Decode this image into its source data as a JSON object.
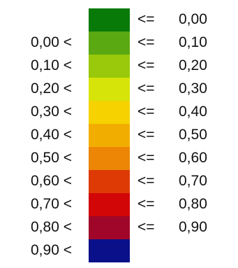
{
  "legend": {
    "rows": [
      {
        "lower": "",
        "color": "#087a08",
        "op": "<=",
        "upper": "0,00"
      },
      {
        "lower": "0,00 <",
        "color": "#5aa812",
        "op": "<=",
        "upper": "0,10"
      },
      {
        "lower": "0,10 <",
        "color": "#99c90a",
        "op": "<=",
        "upper": "0,20"
      },
      {
        "lower": "0,20 <",
        "color": "#d6e40a",
        "op": "<=",
        "upper": "0,30"
      },
      {
        "lower": "0,30 <",
        "color": "#f5d200",
        "op": "<=",
        "upper": "0,40"
      },
      {
        "lower": "0,40 <",
        "color": "#f2ae00",
        "op": "<=",
        "upper": "0,50"
      },
      {
        "lower": "0,50 <",
        "color": "#ec8604",
        "op": "<=",
        "upper": "0,60"
      },
      {
        "lower": "0,60 <",
        "color": "#de3a06",
        "op": "<=",
        "upper": "0,70"
      },
      {
        "lower": "0,70 <",
        "color": "#d20606",
        "op": "<=",
        "upper": "0,80"
      },
      {
        "lower": "0,80 <",
        "color": "#a00629",
        "op": "<=",
        "upper": "0,90"
      },
      {
        "lower": "0,90 <",
        "color": "#0a1089",
        "op": "",
        "upper": ""
      }
    ]
  }
}
